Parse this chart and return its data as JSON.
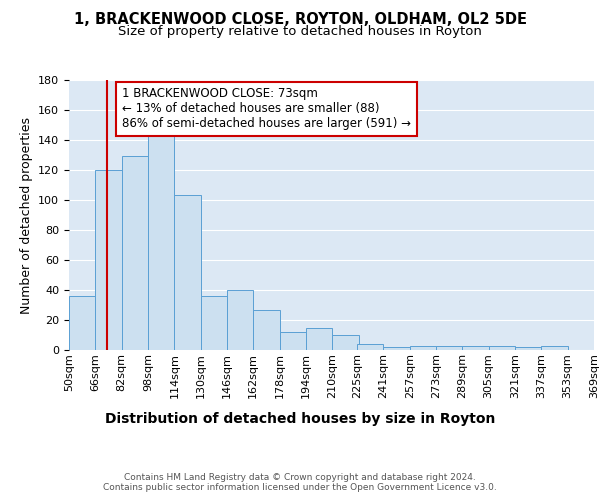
{
  "title1": "1, BRACKENWOOD CLOSE, ROYTON, OLDHAM, OL2 5DE",
  "title2": "Size of property relative to detached houses in Royton",
  "xlabel": "Distribution of detached houses by size in Royton",
  "ylabel": "Number of detached properties",
  "bar_left_edges": [
    50,
    66,
    82,
    98,
    114,
    130,
    146,
    162,
    178,
    194,
    210,
    225,
    241,
    257,
    273,
    289,
    305,
    321,
    337,
    353
  ],
  "bar_heights": [
    36,
    120,
    129,
    144,
    103,
    36,
    40,
    27,
    12,
    15,
    10,
    4,
    2,
    3,
    3,
    3,
    3,
    2,
    3,
    0
  ],
  "bin_width": 16,
  "x_tick_labels": [
    "50sqm",
    "66sqm",
    "82sqm",
    "98sqm",
    "114sqm",
    "130sqm",
    "146sqm",
    "162sqm",
    "178sqm",
    "194sqm",
    "210sqm",
    "225sqm",
    "241sqm",
    "257sqm",
    "273sqm",
    "289sqm",
    "305sqm",
    "321sqm",
    "337sqm",
    "353sqm",
    "369sqm"
  ],
  "bar_face_color": "#cce0f0",
  "bar_edge_color": "#5a9fd4",
  "grid_color": "#ffffff",
  "bg_color": "#dce8f4",
  "red_line_x": 73,
  "red_line_color": "#cc0000",
  "annotation_text": "1 BRACKENWOOD CLOSE: 73sqm\n← 13% of detached houses are smaller (88)\n86% of semi-detached houses are larger (591) →",
  "annotation_box_color": "#ffffff",
  "annotation_box_edge": "#cc0000",
  "ylim": [
    0,
    180
  ],
  "yticks": [
    0,
    20,
    40,
    60,
    80,
    100,
    120,
    140,
    160,
    180
  ],
  "footer_text": "Contains HM Land Registry data © Crown copyright and database right 2024.\nContains public sector information licensed under the Open Government Licence v3.0.",
  "title1_fontsize": 10.5,
  "title2_fontsize": 9.5,
  "xlabel_fontsize": 10,
  "ylabel_fontsize": 9,
  "tick_fontsize": 8,
  "annot_fontsize": 8.5,
  "footer_fontsize": 6.5
}
